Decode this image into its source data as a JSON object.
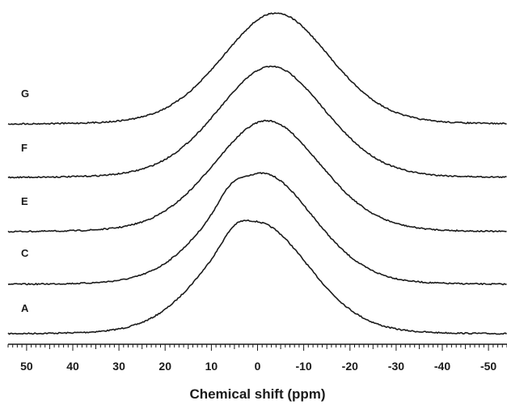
{
  "chart_data": {
    "type": "line",
    "xlabel": "Chemical shift (ppm)",
    "ylabel": "",
    "title": "",
    "xlim": [
      54,
      -54
    ],
    "x_reversed": true,
    "x_ticks": [
      50,
      40,
      30,
      20,
      10,
      0,
      -10,
      -20,
      -30,
      -40,
      -50
    ],
    "x_tick_labels": [
      "50",
      "40",
      "30",
      "20",
      "10",
      "0",
      "-10",
      "-20",
      "-30",
      "-40",
      "-50"
    ],
    "stacked": true,
    "grid": false,
    "legend": "none",
    "series": [
      {
        "name": "A",
        "center_ppm": 0,
        "width_ppm": 11.5,
        "shoulder_ppm": 5,
        "peak_height": 1.0
      },
      {
        "name": "C",
        "center_ppm": -1,
        "width_ppm": 11.5,
        "shoulder_ppm": 6,
        "peak_height": 1.0
      },
      {
        "name": "E",
        "center_ppm": -2,
        "width_ppm": 12,
        "shoulder_ppm": null,
        "peak_height": 1.0
      },
      {
        "name": "F",
        "center_ppm": -3,
        "width_ppm": 12,
        "shoulder_ppm": null,
        "peak_height": 1.0
      },
      {
        "name": "G",
        "center_ppm": -4,
        "width_ppm": 12,
        "shoulder_ppm": null,
        "peak_height": 1.0
      }
    ]
  }
}
